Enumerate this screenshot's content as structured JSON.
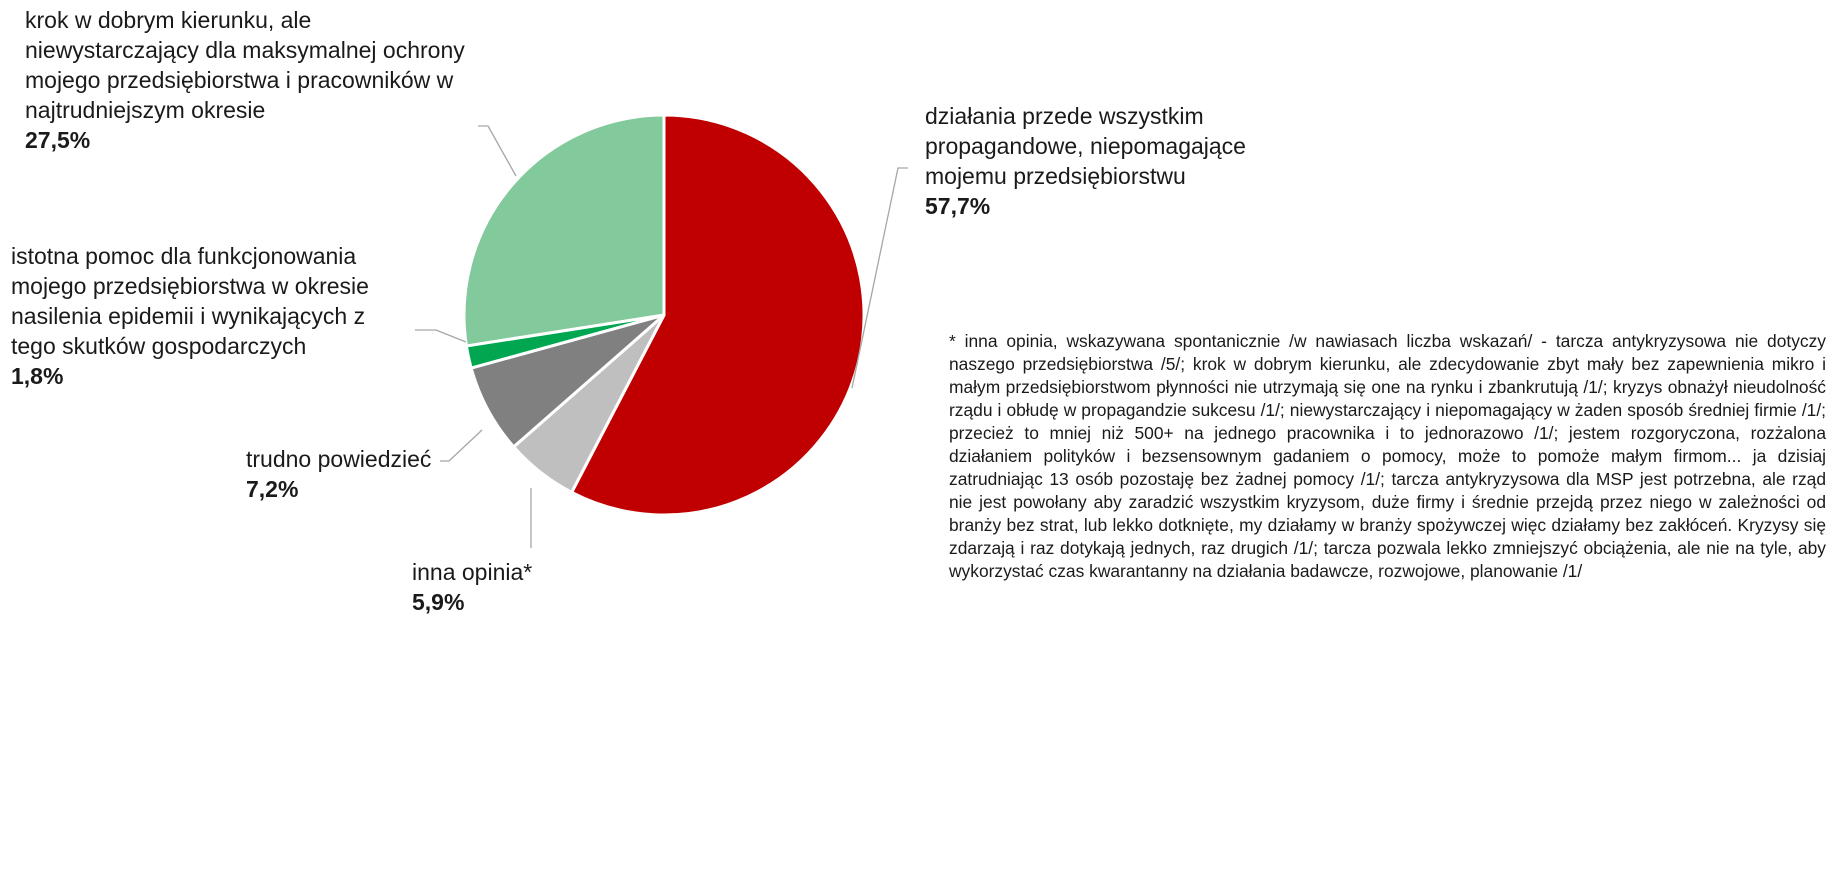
{
  "chart_data": {
    "type": "pie",
    "slices": [
      {
        "label": "działania przede wszystkim propagandowe, niepomagające mojemu przedsiębiorstwu",
        "value": 57.7,
        "value_label": "57,7%",
        "color": "#c00000"
      },
      {
        "label": "inna opinia*",
        "value": 5.9,
        "value_label": "5,9%",
        "color": "#bfbfbf"
      },
      {
        "label": "trudno powiedzieć",
        "value": 7.2,
        "value_label": "7,2%",
        "color": "#808080"
      },
      {
        "label": "istotna pomoc dla funkcjonowania mojego przedsiębiorstwa w okresie nasilenia epidemii i wynikających z tego skutków gospodarczych",
        "value": 1.8,
        "value_label": "1,8%",
        "color": "#00a650"
      },
      {
        "label": "krok w dobrym kierunku, ale niewystarczający dla maksymalnej ochrony mojego przedsiębiorstwa i pracowników w najtrudniejszym okresie",
        "value": 27.5,
        "value_label": "27,5%",
        "color": "#82c99b"
      }
    ],
    "start": "12 o'clock",
    "direction": "clockwise"
  },
  "labels": {
    "propaganda": {
      "text": [
        "działania przede wszystkim",
        "propagandowe, niepomagające",
        "mojemu przedsiębiorstwu"
      ],
      "pct": "57,7%"
    },
    "other": {
      "text": [
        "inna opinia*"
      ],
      "pct": "5,9%"
    },
    "hard_to_say": {
      "text": [
        "trudno powiedzieć"
      ],
      "pct": "7,2%"
    },
    "significant_help": {
      "text": [
        "istotna pomoc dla funkcjonowania",
        "mojego przedsiębiorstwa w okresie",
        "nasilenia epidemii i wynikających z",
        "tego skutków gospodarczych"
      ],
      "pct": "1,8%"
    },
    "good_direction": {
      "text": [
        "krok w dobrym kierunku, ale",
        "niewystarczający dla maksymalnej ochrony",
        "mojego przedsiębiorstwa i pracowników w",
        "najtrudniejszym okresie"
      ],
      "pct": "27,5%"
    }
  },
  "footnote": "* inna opinia, wskazywana spontanicznie /w nawiasach liczba wskazań/ - tarcza antykryzysowa nie dotyczy naszego przedsiębiorstwa /5/; krok w dobrym kierunku, ale zdecydowanie zbyt mały bez zapewnienia mikro i małym przedsiębiorstwom płynności nie utrzymają się one na rynku i zbankrutują /1/; kryzys obnażył nieudolność rządu i obłudę w propagandzie sukcesu /1/; niewystarczający i niepomagający w żaden sposób średniej firmie /1/; przecież to mniej niż 500+ na jednego pracownika i to jednorazowo /1/; jestem rozgoryczona, rozżalona działaniem polityków i bezsensownym gadaniem o pomocy, może to pomoże małym firmom... ja dzisiaj zatrudniając 13 osób pozostaję bez żadnej pomocy /1/; tarcza antykryzysowa dla MSP jest potrzebna, ale rząd nie jest powołany aby zaradzić wszystkim kryzysom, duże firmy i średnie przejdą przez niego w zależności od branży bez strat, lub lekko dotknięte, my działamy w branży spożywczej więc działamy bez zakłóceń. Kryzysy się zdarzają i raz dotykają jednych, raz drugich /1/; tarcza pozwala lekko zmniejszyć obciążenia, ale nie na tyle, aby wykorzystać czas kwarantanny na działania badawcze, rozwojowe, planowanie /1/"
}
